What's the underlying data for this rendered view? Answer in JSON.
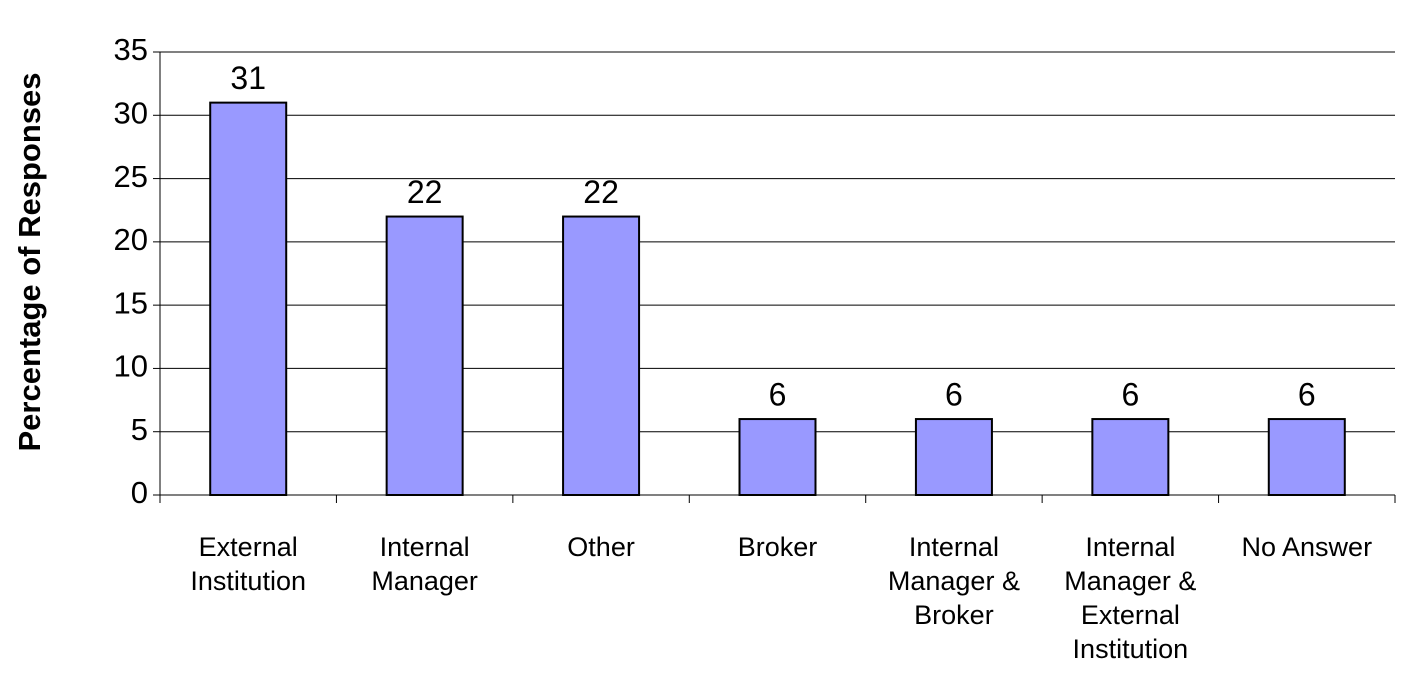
{
  "chart_data": {
    "type": "bar",
    "y_axis_label": "Percentage of Responses",
    "categories": [
      "External Institution",
      "Internal Manager",
      "Other",
      "Broker",
      "Internal Manager & Broker",
      "Internal Manager & External Institution",
      "No Answer"
    ],
    "values": [
      31,
      22,
      22,
      6,
      6,
      6,
      6
    ],
    "color": "#9999ff",
    "ylim": [
      0,
      35
    ],
    "yticks": [
      0,
      5,
      10,
      15,
      20,
      25,
      30,
      35
    ],
    "grid": true
  }
}
